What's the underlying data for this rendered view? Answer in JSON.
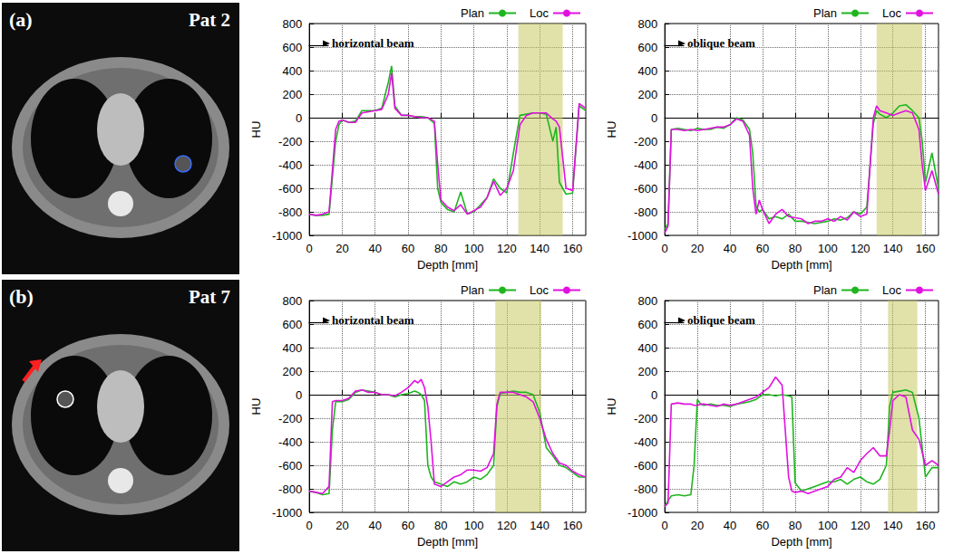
{
  "image_panels": [
    {
      "label": "(a)",
      "title": "Pat 2"
    },
    {
      "label": "(b)",
      "title": "Pat 7"
    }
  ],
  "chart_data": [
    {
      "type": "line",
      "annotation": "horizontal beam",
      "x_label": "Depth [mm]",
      "y_label": "HU",
      "xlim": [
        0,
        168
      ],
      "xticks": [
        0,
        20,
        40,
        60,
        80,
        100,
        120,
        140,
        160
      ],
      "ylim": [
        -1000,
        800
      ],
      "yticks": [
        -1000,
        -800,
        -600,
        -400,
        -200,
        0,
        200,
        400,
        600,
        800
      ],
      "grid": true,
      "legend": "top-right",
      "highlight": [
        127,
        154
      ],
      "x": [
        0,
        4,
        8,
        12,
        16,
        18,
        20,
        24,
        28,
        32,
        36,
        40,
        44,
        48,
        50,
        52,
        56,
        60,
        64,
        68,
        72,
        76,
        78,
        80,
        84,
        88,
        92,
        96,
        100,
        104,
        108,
        112,
        116,
        120,
        124,
        128,
        132,
        136,
        140,
        144,
        148,
        150,
        152,
        156,
        160,
        164,
        168
      ],
      "series": [
        {
          "name": "Plan",
          "color": "#1fb51f",
          "values": [
            -820,
            -830,
            -830,
            -820,
            -200,
            -60,
            -20,
            -40,
            -30,
            60,
            60,
            60,
            80,
            300,
            440,
            100,
            20,
            20,
            10,
            10,
            0,
            -50,
            -600,
            -720,
            -780,
            -800,
            -630,
            -820,
            -800,
            -740,
            -680,
            -520,
            -600,
            -640,
            -300,
            20,
            30,
            40,
            40,
            30,
            -200,
            -80,
            -550,
            -650,
            -640,
            100,
            60
          ]
        },
        {
          "name": "Loc",
          "color": "#e011e0",
          "values": [
            -820,
            -830,
            -820,
            -800,
            -100,
            -30,
            -20,
            -40,
            -40,
            40,
            50,
            60,
            70,
            200,
            380,
            80,
            20,
            20,
            10,
            0,
            0,
            -30,
            -400,
            -700,
            -760,
            -790,
            -740,
            -820,
            -790,
            -760,
            -680,
            -540,
            -660,
            -600,
            -450,
            -60,
            20,
            40,
            40,
            40,
            -10,
            -30,
            -80,
            -600,
            -620,
            120,
            80
          ]
        }
      ]
    },
    {
      "type": "line",
      "annotation": "oblique beam",
      "x_label": "Depth [mm]",
      "y_label": "HU",
      "xlim": [
        0,
        168
      ],
      "xticks": [
        0,
        20,
        40,
        60,
        80,
        100,
        120,
        140,
        160
      ],
      "ylim": [
        -1000,
        800
      ],
      "yticks": [
        -1000,
        -800,
        -600,
        -400,
        -200,
        0,
        200,
        400,
        600,
        800
      ],
      "grid": true,
      "legend": "top-right",
      "highlight": [
        130,
        158
      ],
      "x": [
        0,
        2,
        4,
        8,
        12,
        16,
        20,
        24,
        28,
        32,
        36,
        40,
        44,
        48,
        52,
        54,
        56,
        58,
        60,
        64,
        68,
        72,
        76,
        80,
        84,
        88,
        92,
        96,
        100,
        104,
        108,
        112,
        116,
        120,
        124,
        128,
        130,
        132,
        136,
        140,
        144,
        148,
        152,
        156,
        158,
        160,
        164,
        168
      ],
      "series": [
        {
          "name": "Plan",
          "color": "#1fb51f",
          "values": [
            -950,
            -900,
            -100,
            -90,
            -100,
            -110,
            -90,
            -100,
            -100,
            -80,
            -90,
            -60,
            0,
            -20,
            -100,
            -300,
            -750,
            -800,
            -780,
            -860,
            -840,
            -860,
            -820,
            -880,
            -880,
            -890,
            -900,
            -890,
            -880,
            -860,
            -870,
            -850,
            -800,
            -820,
            -760,
            -50,
            60,
            30,
            0,
            40,
            100,
            110,
            60,
            0,
            -200,
            -550,
            -300,
            -600
          ]
        },
        {
          "name": "Loc",
          "color": "#e011e0",
          "values": [
            -980,
            -920,
            -100,
            -100,
            -110,
            -100,
            -110,
            -100,
            -90,
            -80,
            -80,
            -60,
            -10,
            -30,
            -150,
            -600,
            -820,
            -700,
            -780,
            -900,
            -820,
            -780,
            -840,
            -850,
            -860,
            -900,
            -880,
            -880,
            -860,
            -880,
            -840,
            -870,
            -800,
            -840,
            -820,
            0,
            100,
            60,
            40,
            20,
            40,
            60,
            40,
            -100,
            -400,
            -620,
            -450,
            -650
          ]
        }
      ]
    },
    {
      "type": "line",
      "annotation": "horizontal beam",
      "x_label": "Depth [mm]",
      "y_label": "HU",
      "xlim": [
        0,
        168
      ],
      "xticks": [
        0,
        20,
        40,
        60,
        80,
        100,
        120,
        140,
        160
      ],
      "ylim": [
        -1000,
        800
      ],
      "yticks": [
        -1000,
        -800,
        -600,
        -400,
        -200,
        0,
        200,
        400,
        600,
        800
      ],
      "grid": true,
      "legend": "top-right",
      "highlight": [
        113,
        141
      ],
      "x": [
        0,
        4,
        8,
        12,
        14,
        16,
        20,
        24,
        28,
        32,
        36,
        40,
        44,
        48,
        52,
        56,
        60,
        64,
        66,
        68,
        70,
        72,
        74,
        76,
        80,
        84,
        88,
        92,
        96,
        100,
        104,
        108,
        112,
        114,
        116,
        120,
        124,
        128,
        132,
        136,
        140,
        144,
        148,
        152,
        156,
        160,
        164,
        168
      ],
      "series": [
        {
          "name": "Plan",
          "color": "#1fb51f",
          "values": [
            -820,
            -830,
            -850,
            -840,
            -300,
            -60,
            -60,
            -40,
            20,
            40,
            30,
            20,
            0,
            0,
            -20,
            0,
            10,
            30,
            20,
            0,
            -50,
            -600,
            -700,
            -740,
            -760,
            -780,
            -740,
            -760,
            -740,
            -700,
            -720,
            -680,
            -600,
            -100,
            10,
            20,
            30,
            20,
            20,
            0,
            -150,
            -450,
            -520,
            -600,
            -620,
            -660,
            -700,
            -700
          ]
        },
        {
          "name": "Loc",
          "color": "#e011e0",
          "values": [
            -820,
            -830,
            -840,
            -780,
            -60,
            -50,
            -50,
            -30,
            30,
            40,
            20,
            20,
            0,
            0,
            -10,
            20,
            60,
            120,
            100,
            130,
            60,
            -100,
            -400,
            -760,
            -780,
            -740,
            -700,
            -680,
            -640,
            -640,
            -650,
            -620,
            -500,
            -80,
            20,
            20,
            20,
            0,
            -20,
            -60,
            -200,
            -380,
            -500,
            -580,
            -600,
            -650,
            -680,
            -700
          ]
        }
      ]
    },
    {
      "type": "line",
      "annotation": "oblique beam",
      "x_label": "Depth [mm]",
      "y_label": "HU",
      "xlim": [
        0,
        168
      ],
      "xticks": [
        0,
        20,
        40,
        60,
        80,
        100,
        120,
        140,
        160
      ],
      "ylim": [
        -1000,
        800
      ],
      "yticks": [
        -1000,
        -800,
        -600,
        -400,
        -200,
        0,
        200,
        400,
        600,
        800
      ],
      "grid": true,
      "legend": "top-right",
      "highlight": [
        137,
        155
      ],
      "x": [
        0,
        2,
        4,
        8,
        12,
        16,
        18,
        20,
        22,
        24,
        28,
        32,
        36,
        40,
        44,
        48,
        52,
        56,
        60,
        64,
        68,
        72,
        76,
        78,
        80,
        84,
        88,
        92,
        96,
        100,
        104,
        108,
        112,
        116,
        120,
        124,
        128,
        132,
        136,
        138,
        140,
        144,
        148,
        152,
        156,
        160,
        164,
        168
      ],
      "series": [
        {
          "name": "Plan",
          "color": "#1fb51f",
          "values": [
            -950,
            -900,
            -860,
            -850,
            -860,
            -850,
            -600,
            -40,
            -80,
            -90,
            -80,
            -90,
            -90,
            -100,
            -80,
            -70,
            -60,
            -40,
            0,
            0,
            -10,
            0,
            -10,
            -20,
            -750,
            -820,
            -800,
            -780,
            -760,
            -740,
            -740,
            -720,
            -760,
            -720,
            -700,
            -740,
            -760,
            -720,
            -600,
            -100,
            20,
            30,
            40,
            20,
            -200,
            -700,
            -620,
            -620
          ]
        },
        {
          "name": "Loc",
          "color": "#e011e0",
          "values": [
            -950,
            -920,
            -80,
            -70,
            -80,
            -80,
            -90,
            -90,
            -80,
            -80,
            -90,
            -100,
            -80,
            -90,
            -80,
            -60,
            -40,
            -20,
            20,
            60,
            150,
            80,
            -700,
            -820,
            -830,
            -820,
            -840,
            -820,
            -800,
            -780,
            -720,
            -700,
            -620,
            -660,
            -560,
            -500,
            -450,
            -520,
            -520,
            -300,
            -50,
            0,
            -20,
            -300,
            -380,
            -600,
            -560,
            -600
          ]
        }
      ]
    }
  ]
}
